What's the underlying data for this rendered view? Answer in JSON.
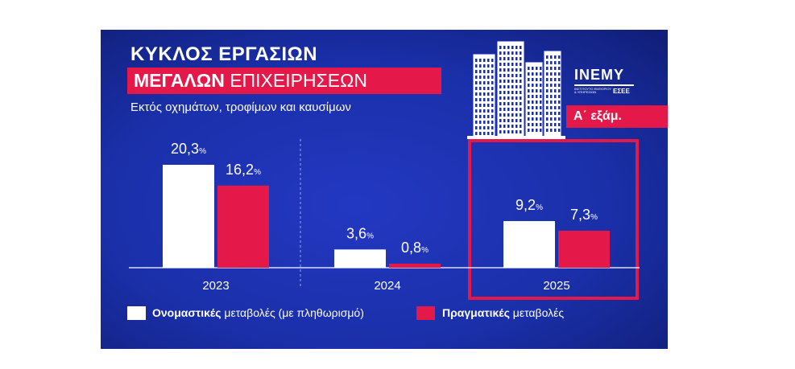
{
  "header": {
    "title_line1": "ΚΥΚΛΟΣ ΕΡΓΑΣΙΩΝ",
    "title_line2_bold": "ΜΕΓΑΛΩΝ",
    "title_line2_rest": " ΕΠΙΧΕΙΡΗΣΕΩΝ",
    "subtitle": "Εκτός οχημάτων, τροφίμων και καυσίμων"
  },
  "logo": {
    "name": "INEMY",
    "small_text": "ΙΝΣΤΙΤΟΥΤΟ ΕΜΠΟΡΙΟΥ & ΥΠΗΡΕΣΙΩΝ",
    "org": "ΕΣΕΕ"
  },
  "badge": "Α΄ εξάμ.",
  "colors": {
    "background": "#1a2fa8",
    "nominal": "#ffffff",
    "real": "#e4194a",
    "highlight_frame": "#e4194a"
  },
  "icons": [
    "skyscrapers-icon"
  ],
  "chart_data": {
    "type": "bar",
    "categories": [
      "2023",
      "2024",
      "2025"
    ],
    "series": [
      {
        "name": "Ονομαστικές μεταβολές (με πληθωρισμό)",
        "values": [
          20.3,
          3.6,
          9.2
        ],
        "labels": [
          "20,3",
          "3,6",
          "9,2"
        ]
      },
      {
        "name": "Πραγματικές μεταβολές",
        "values": [
          16.2,
          0.8,
          7.3
        ],
        "labels": [
          "16,2",
          "0,8",
          "7,3"
        ]
      }
    ],
    "value_suffix": "%",
    "ylim": [
      0,
      22
    ],
    "highlighted_category": "2025",
    "grid": false,
    "legend_position": "bottom"
  },
  "legend": [
    {
      "bold": "Ονομαστικές",
      "rest": " μεταβολές (με πληθωρισμό)"
    },
    {
      "bold": "Πραγματικές",
      "rest": " μεταβολές"
    }
  ]
}
